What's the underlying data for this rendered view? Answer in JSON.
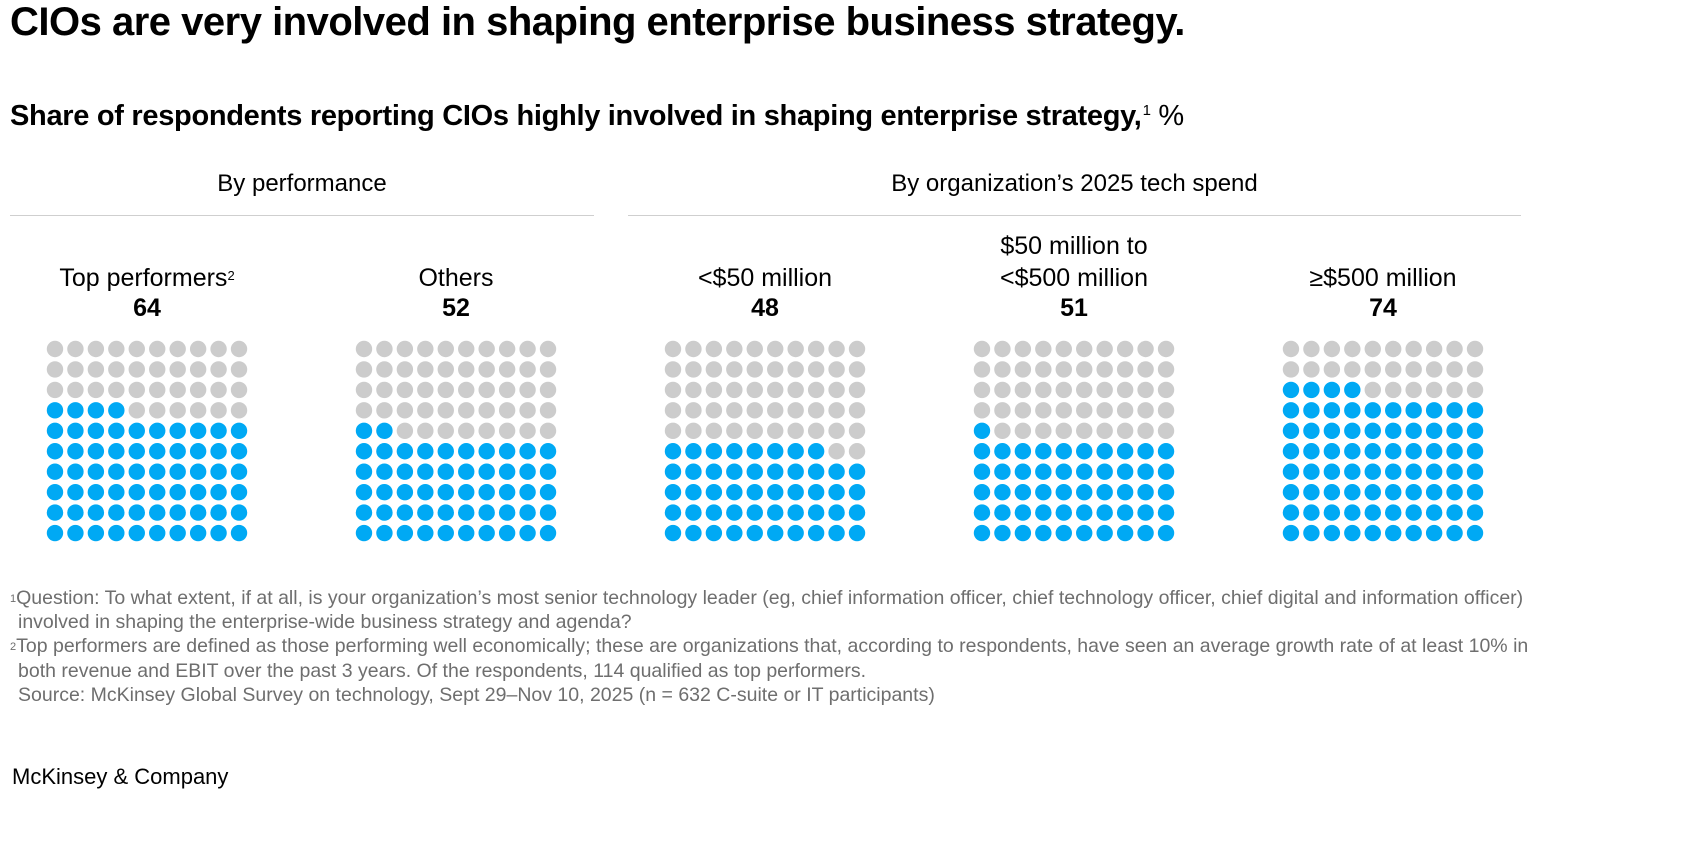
{
  "title": "CIOs are very involved in shaping enterprise business strategy.",
  "subtitle": {
    "text": "Share of respondents reporting CIOs highly involved in shaping enterprise strategy,",
    "footnote_marker": "1",
    "unit": "%"
  },
  "groups": [
    {
      "label": "By performance"
    },
    {
      "label": "By organization’s 2025 tech spend"
    }
  ],
  "colors": {
    "filled": "#00A9F4",
    "empty": "#CCCCCC"
  },
  "chart_data": {
    "type": "waffle",
    "title": "Share of respondents reporting CIOs highly involved in shaping enterprise strategy, %",
    "grid": {
      "rows": 10,
      "cols": 10,
      "total": 100
    },
    "series": [
      {
        "group": "By performance",
        "label_lines": [
          "Top performers"
        ],
        "footnote_marker": "2",
        "value": 64
      },
      {
        "group": "By performance",
        "label_lines": [
          "Others"
        ],
        "footnote_marker": "",
        "value": 52
      },
      {
        "group": "By organization’s 2025 tech spend",
        "label_lines": [
          "<$50 million"
        ],
        "footnote_marker": "",
        "value": 48
      },
      {
        "group": "By organization’s 2025 tech spend",
        "label_lines": [
          "$50 million to",
          "<$500 million"
        ],
        "footnote_marker": "",
        "value": 51
      },
      {
        "group": "By organization’s 2025 tech spend",
        "label_lines": [
          "≥$500 million"
        ],
        "footnote_marker": "",
        "value": 74
      }
    ]
  },
  "footnotes": [
    {
      "marker": "1",
      "text": "Question: To what extent, if at all, is your organization’s most senior technology leader (eg, chief information officer, chief technology officer, chief digital and information officer) involved in shaping the enterprise-wide business strategy and agenda?"
    },
    {
      "marker": "2",
      "text": "Top performers are defined as those performing well economically; these are organizations that, according to respondents, have seen an average growth rate of at least 10% in both revenue and EBIT over the past 3 years. Of the respondents, 114 qualified as top performers."
    }
  ],
  "source": "Source: McKinsey Global Survey on technology, Sept 29–Nov 10, 2025 (n = 632 C-suite or IT participants)",
  "logo": "McKinsey & Company"
}
